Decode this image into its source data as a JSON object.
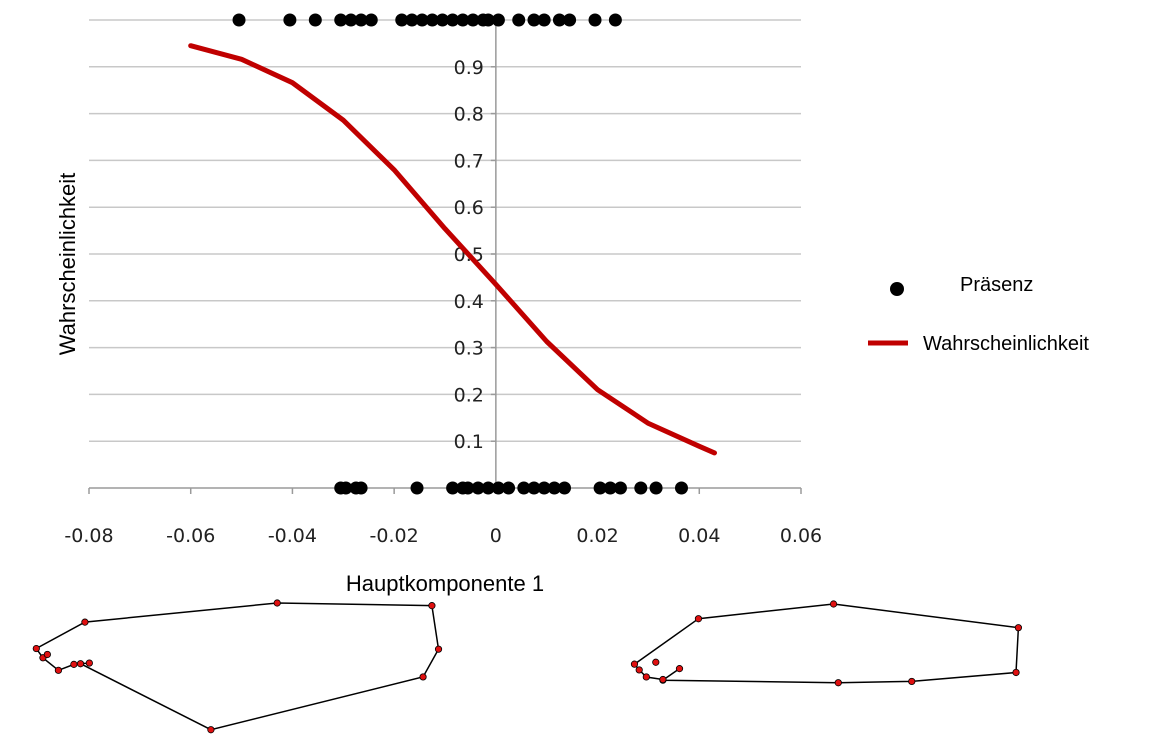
{
  "chart_data": {
    "type": "scatter",
    "title": "",
    "xlabel": "Hauptkomponente 1",
    "ylabel": "Wahrscheinlichkeit",
    "xlim": [
      -0.08,
      0.06
    ],
    "ylim": [
      0,
      1
    ],
    "x_ticks": [
      "-0.08",
      "-0.06",
      "-0.04",
      "-0.02",
      "0",
      "0.02",
      "0.04",
      "0.06"
    ],
    "x_tick_values": [
      -0.08,
      -0.06,
      -0.04,
      -0.02,
      0,
      0.02,
      0.04,
      0.06
    ],
    "y_ticks": [
      "0.1",
      "0.2",
      "0.3",
      "0.4",
      "0.5",
      "0.6",
      "0.7",
      "0.8",
      "0.9"
    ],
    "y_tick_values": [
      0.1,
      0.2,
      0.3,
      0.4,
      0.5,
      0.6,
      0.7,
      0.8,
      0.9
    ],
    "grid": "horizontal",
    "legend_position": "right",
    "series": [
      {
        "name": "Präsenz",
        "kind": "scatter",
        "color": "#000000",
        "points": [
          [
            -0.0505,
            1
          ],
          [
            -0.0405,
            1
          ],
          [
            -0.0355,
            1
          ],
          [
            -0.0305,
            1
          ],
          [
            -0.0285,
            1
          ],
          [
            -0.0265,
            1
          ],
          [
            -0.0245,
            1
          ],
          [
            -0.0185,
            1
          ],
          [
            -0.0165,
            1
          ],
          [
            -0.0145,
            1
          ],
          [
            -0.0125,
            1
          ],
          [
            -0.0105,
            1
          ],
          [
            -0.0085,
            1
          ],
          [
            -0.0065,
            1
          ],
          [
            -0.0045,
            1
          ],
          [
            -0.0025,
            1
          ],
          [
            0.0005,
            1
          ],
          [
            -0.0015,
            1
          ],
          [
            0.0045,
            1
          ],
          [
            0.0075,
            1
          ],
          [
            0.0095,
            1
          ],
          [
            0.0125,
            1
          ],
          [
            0.0145,
            1
          ],
          [
            0.0195,
            1
          ],
          [
            0.0235,
            1
          ],
          [
            -0.0305,
            0
          ],
          [
            -0.0295,
            0
          ],
          [
            -0.0275,
            0
          ],
          [
            -0.0265,
            0
          ],
          [
            -0.0155,
            0
          ],
          [
            -0.0085,
            0
          ],
          [
            -0.0065,
            0
          ],
          [
            -0.0055,
            0
          ],
          [
            -0.0035,
            0
          ],
          [
            -0.0015,
            0
          ],
          [
            0.0005,
            0
          ],
          [
            0.0025,
            0
          ],
          [
            0.0055,
            0
          ],
          [
            0.0075,
            0
          ],
          [
            0.0095,
            0
          ],
          [
            0.0115,
            0
          ],
          [
            0.0135,
            0
          ],
          [
            0.0205,
            0
          ],
          [
            0.0225,
            0
          ],
          [
            0.0245,
            0
          ],
          [
            0.0285,
            0
          ],
          [
            0.0315,
            0
          ],
          [
            0.0365,
            0
          ]
        ]
      },
      {
        "name": "Wahrscheinlichkeit",
        "kind": "line",
        "color": "#c00000",
        "x": [
          -0.06,
          -0.05,
          -0.04,
          -0.03,
          -0.02,
          -0.01,
          0,
          0.01,
          0.02,
          0.03,
          0.04,
          0.043
        ],
        "y": [
          0.945,
          0.916,
          0.866,
          0.786,
          0.68,
          0.554,
          0.435,
          0.313,
          0.21,
          0.138,
          0.089,
          0.075
        ]
      }
    ]
  },
  "shapes": [
    {
      "name": "outline-left",
      "points": [
        [
          0.2,
          1.0
        ],
        [
          0.9,
          0.96
        ],
        [
          0.93,
          0.3
        ],
        [
          0.86,
          -0.12
        ],
        [
          -0.1,
          -0.92
        ],
        [
          -0.69,
          0.08
        ],
        [
          -0.72,
          0.07
        ],
        [
          -0.79,
          -0.02
        ],
        [
          -0.86,
          0.17
        ],
        [
          -0.89,
          0.31
        ],
        [
          -0.67,
          0.71
        ]
      ],
      "inner_points": [
        [
          -0.84,
          0.22
        ],
        [
          -0.65,
          0.09
        ]
      ]
    },
    {
      "name": "outline-right",
      "points": [
        [
          0.15,
          1.0
        ],
        [
          0.93,
          0.63
        ],
        [
          0.92,
          -0.07
        ],
        [
          0.48,
          -0.21
        ],
        [
          0.17,
          -0.23
        ],
        [
          -0.57,
          -0.19
        ],
        [
          -0.57,
          -0.18
        ],
        [
          -0.64,
          -0.14
        ],
        [
          -0.67,
          -0.03
        ],
        [
          -0.69,
          0.06
        ],
        [
          -0.42,
          0.77
        ]
      ],
      "inner_points": [
        [
          -0.6,
          0.09
        ],
        [
          -0.5,
          -0.01
        ]
      ]
    }
  ]
}
